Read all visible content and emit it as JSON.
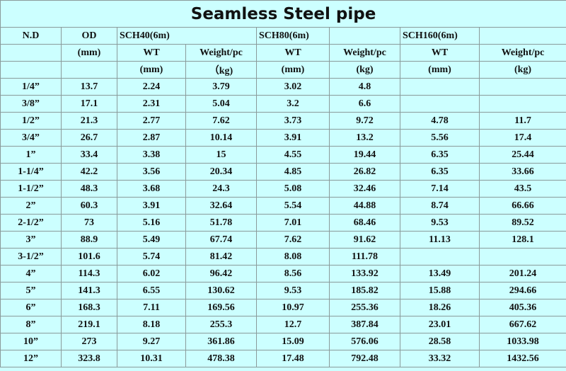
{
  "title": "Seamless Steel pipe",
  "header": {
    "row1": [
      "N.D",
      "OD",
      "SCH40(6m)",
      "SCH80(6m)",
      null,
      "SCH160(6m)",
      null
    ],
    "row2": [
      null,
      "(mm)",
      "WT",
      "Weight/pc",
      "WT",
      "Weight/pc",
      "WT",
      "Weight/pc"
    ],
    "row3": [
      null,
      null,
      "(mm)",
      "（kg)",
      "(mm)",
      "(kg)",
      "(mm)",
      "(kg)"
    ]
  },
  "table": {
    "rows": [
      [
        "1/4”",
        13.7,
        2.24,
        3.79,
        3.02,
        4.8,
        null,
        null
      ],
      [
        "3/8”",
        17.1,
        2.31,
        5.04,
        3.2,
        6.6,
        null,
        null
      ],
      [
        "1/2”",
        21.3,
        2.77,
        7.62,
        3.73,
        9.72,
        4.78,
        11.7
      ],
      [
        "3/4”",
        26.7,
        2.87,
        10.14,
        3.91,
        13.2,
        5.56,
        17.4
      ],
      [
        "1”",
        33.4,
        3.38,
        15,
        4.55,
        19.44,
        6.35,
        25.44
      ],
      [
        "1-1/4”",
        42.2,
        3.56,
        20.34,
        4.85,
        26.82,
        6.35,
        33.66
      ],
      [
        "1-1/2”",
        48.3,
        3.68,
        24.3,
        5.08,
        32.46,
        7.14,
        43.5
      ],
      [
        "2”",
        60.3,
        3.91,
        32.64,
        5.54,
        44.88,
        8.74,
        66.66
      ],
      [
        "2-1/2”",
        73,
        5.16,
        51.78,
        7.01,
        68.46,
        9.53,
        89.52
      ],
      [
        "3”",
        88.9,
        5.49,
        67.74,
        7.62,
        91.62,
        11.13,
        128.1
      ],
      [
        "3-1/2”",
        101.6,
        5.74,
        81.42,
        8.08,
        111.78,
        null,
        null
      ],
      [
        "4”",
        114.3,
        6.02,
        96.42,
        8.56,
        133.92,
        13.49,
        201.24
      ],
      [
        "5”",
        141.3,
        6.55,
        130.62,
        9.53,
        185.82,
        15.88,
        294.66
      ],
      [
        "6”",
        168.3,
        7.11,
        169.56,
        10.97,
        255.36,
        18.26,
        405.36
      ],
      [
        "8”",
        219.1,
        8.18,
        255.3,
        12.7,
        387.84,
        23.01,
        667.62
      ],
      [
        "10”",
        273,
        9.27,
        361.86,
        15.09,
        576.06,
        28.58,
        1033.98
      ],
      [
        "12”",
        323.8,
        10.31,
        478.38,
        17.48,
        792.48,
        33.32,
        1432.56
      ]
    ]
  }
}
